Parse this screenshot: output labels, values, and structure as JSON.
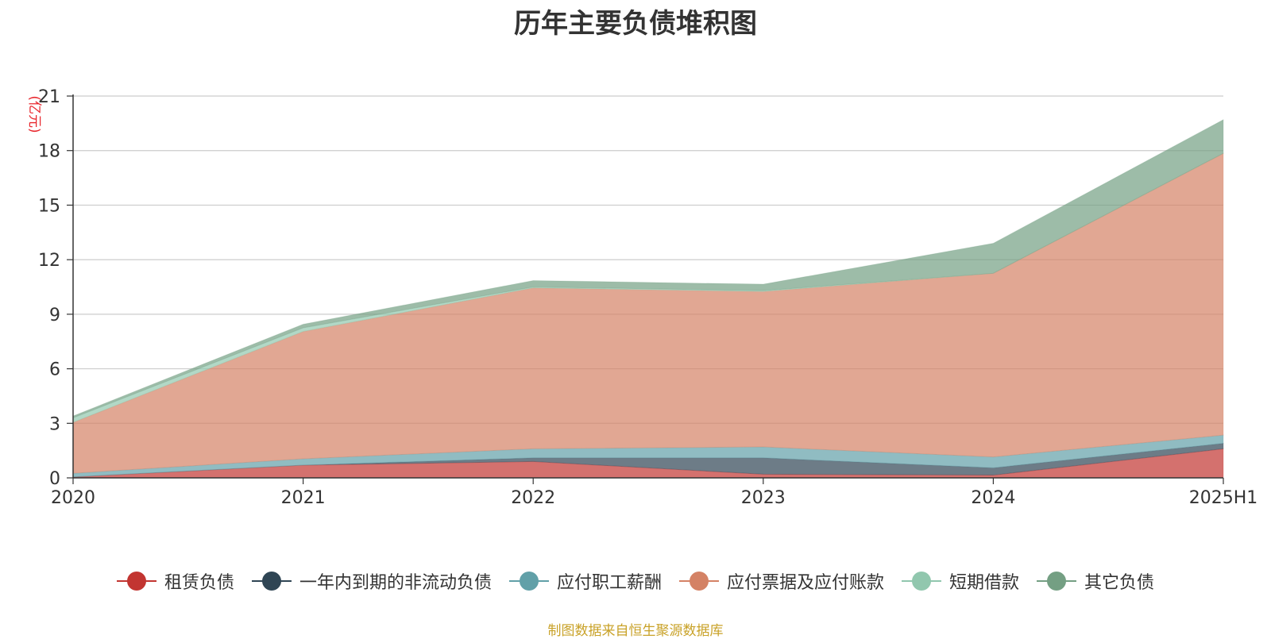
{
  "chart_data": {
    "type": "area",
    "title": "历年主要负债堆积图",
    "ylabel": "(亿元)",
    "xlabel": "",
    "stacked": true,
    "categories": [
      "2020",
      "2021",
      "2022",
      "2023",
      "2024",
      "2025H1"
    ],
    "ylim": [
      0,
      21
    ],
    "yticks": [
      0,
      3,
      6,
      9,
      12,
      15,
      18,
      21
    ],
    "grid": true,
    "legend_position": "bottom",
    "series": [
      {
        "name": "租赁负债",
        "color": "#c23531",
        "values": [
          0.05,
          0.7,
          0.9,
          0.2,
          0.15,
          1.6
        ]
      },
      {
        "name": "一年内到期的非流动负债",
        "color": "#2f4554",
        "values": [
          0.0,
          0.0,
          0.2,
          0.9,
          0.4,
          0.3
        ]
      },
      {
        "name": "应付职工薪酬",
        "color": "#61a0a8",
        "values": [
          0.2,
          0.35,
          0.5,
          0.6,
          0.6,
          0.45
        ]
      },
      {
        "name": "应付票据及应付账款",
        "color": "#d48265",
        "values": [
          2.8,
          7.0,
          8.85,
          8.55,
          10.1,
          15.5
        ]
      },
      {
        "name": "短期借款",
        "color": "#91c7ae",
        "values": [
          0.25,
          0.2,
          0.05,
          0.05,
          0.0,
          0.0
        ]
      },
      {
        "name": "其它负债",
        "color": "#749f83",
        "values": [
          0.1,
          0.2,
          0.35,
          0.35,
          1.65,
          1.85
        ]
      }
    ]
  },
  "source_note": "制图数据来自恒生聚源数据库"
}
